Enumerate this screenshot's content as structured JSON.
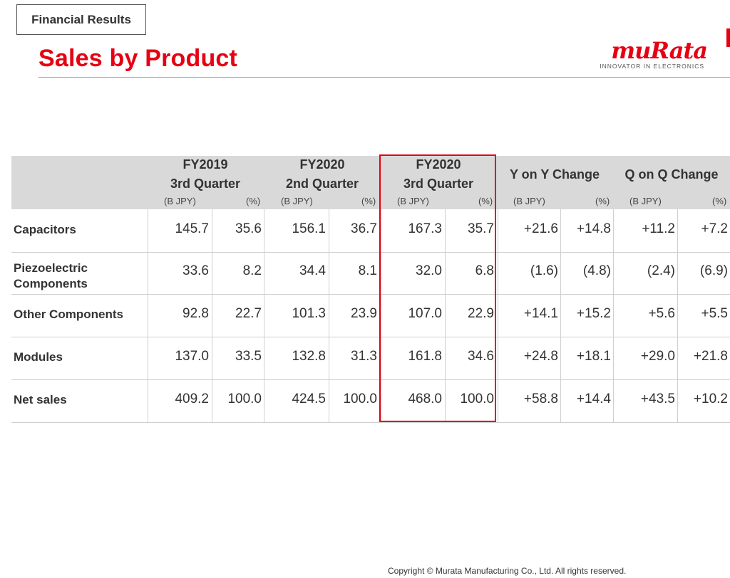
{
  "header": {
    "section_tag": "Financial Results",
    "title": "Sales by Product",
    "logo_text": "muRata",
    "logo_tagline": "INNOVATOR IN ELECTRONICS"
  },
  "table": {
    "column_groups": [
      {
        "line1": "FY2019",
        "line2": "3rd Quarter",
        "sub_left": "(B JPY)",
        "sub_right": "(%)"
      },
      {
        "line1": "FY2020",
        "line2": "2nd Quarter",
        "sub_left": "(B JPY)",
        "sub_right": "(%)"
      },
      {
        "line1": "FY2020",
        "line2": "3rd Quarter",
        "sub_left": "(B JPY)",
        "sub_right": "(%)"
      },
      {
        "line1": "Y on Y Change",
        "line2": "",
        "sub_left": "(B JPY)",
        "sub_right": "(%)"
      },
      {
        "line1": "Q on Q Change",
        "line2": "",
        "sub_left": "(B JPY)",
        "sub_right": "(%)"
      }
    ],
    "rows": [
      {
        "label_line1": "Capacitors",
        "label_line2": "",
        "values": [
          "145.7",
          "35.6",
          "156.1",
          "36.7",
          "167.3",
          "35.7",
          "+21.6",
          "+14.8",
          "+11.2",
          "+7.2"
        ]
      },
      {
        "label_line1": "Piezoelectric",
        "label_line2": "Components",
        "values": [
          "33.6",
          "8.2",
          "34.4",
          "8.1",
          "32.0",
          "6.8",
          "(1.6)",
          "(4.8)",
          "(2.4)",
          "(6.9)"
        ]
      },
      {
        "label_line1": "Other Components",
        "label_line2": "",
        "values": [
          "92.8",
          "22.7",
          "101.3",
          "23.9",
          "107.0",
          "22.9",
          "+14.1",
          "+15.2",
          "+5.6",
          "+5.5"
        ]
      },
      {
        "label_line1": "Modules",
        "label_line2": "",
        "values": [
          "137.0",
          "33.5",
          "132.8",
          "31.3",
          "161.8",
          "34.6",
          "+24.8",
          "+18.1",
          "+29.0",
          "+21.8"
        ]
      },
      {
        "label_line1": "Net sales",
        "label_line2": "",
        "values": [
          "409.2",
          "100.0",
          "424.5",
          "100.0",
          "468.0",
          "100.0",
          "+58.8",
          "+14.4",
          "+43.5",
          "+10.2"
        ]
      }
    ]
  },
  "footer": {
    "copyright": "Copyright © Murata Manufacturing Co., Ltd. All rights reserved."
  },
  "colors": {
    "accent": "#e60012",
    "header_fill": "#d9d9d9",
    "text": "#333333"
  }
}
